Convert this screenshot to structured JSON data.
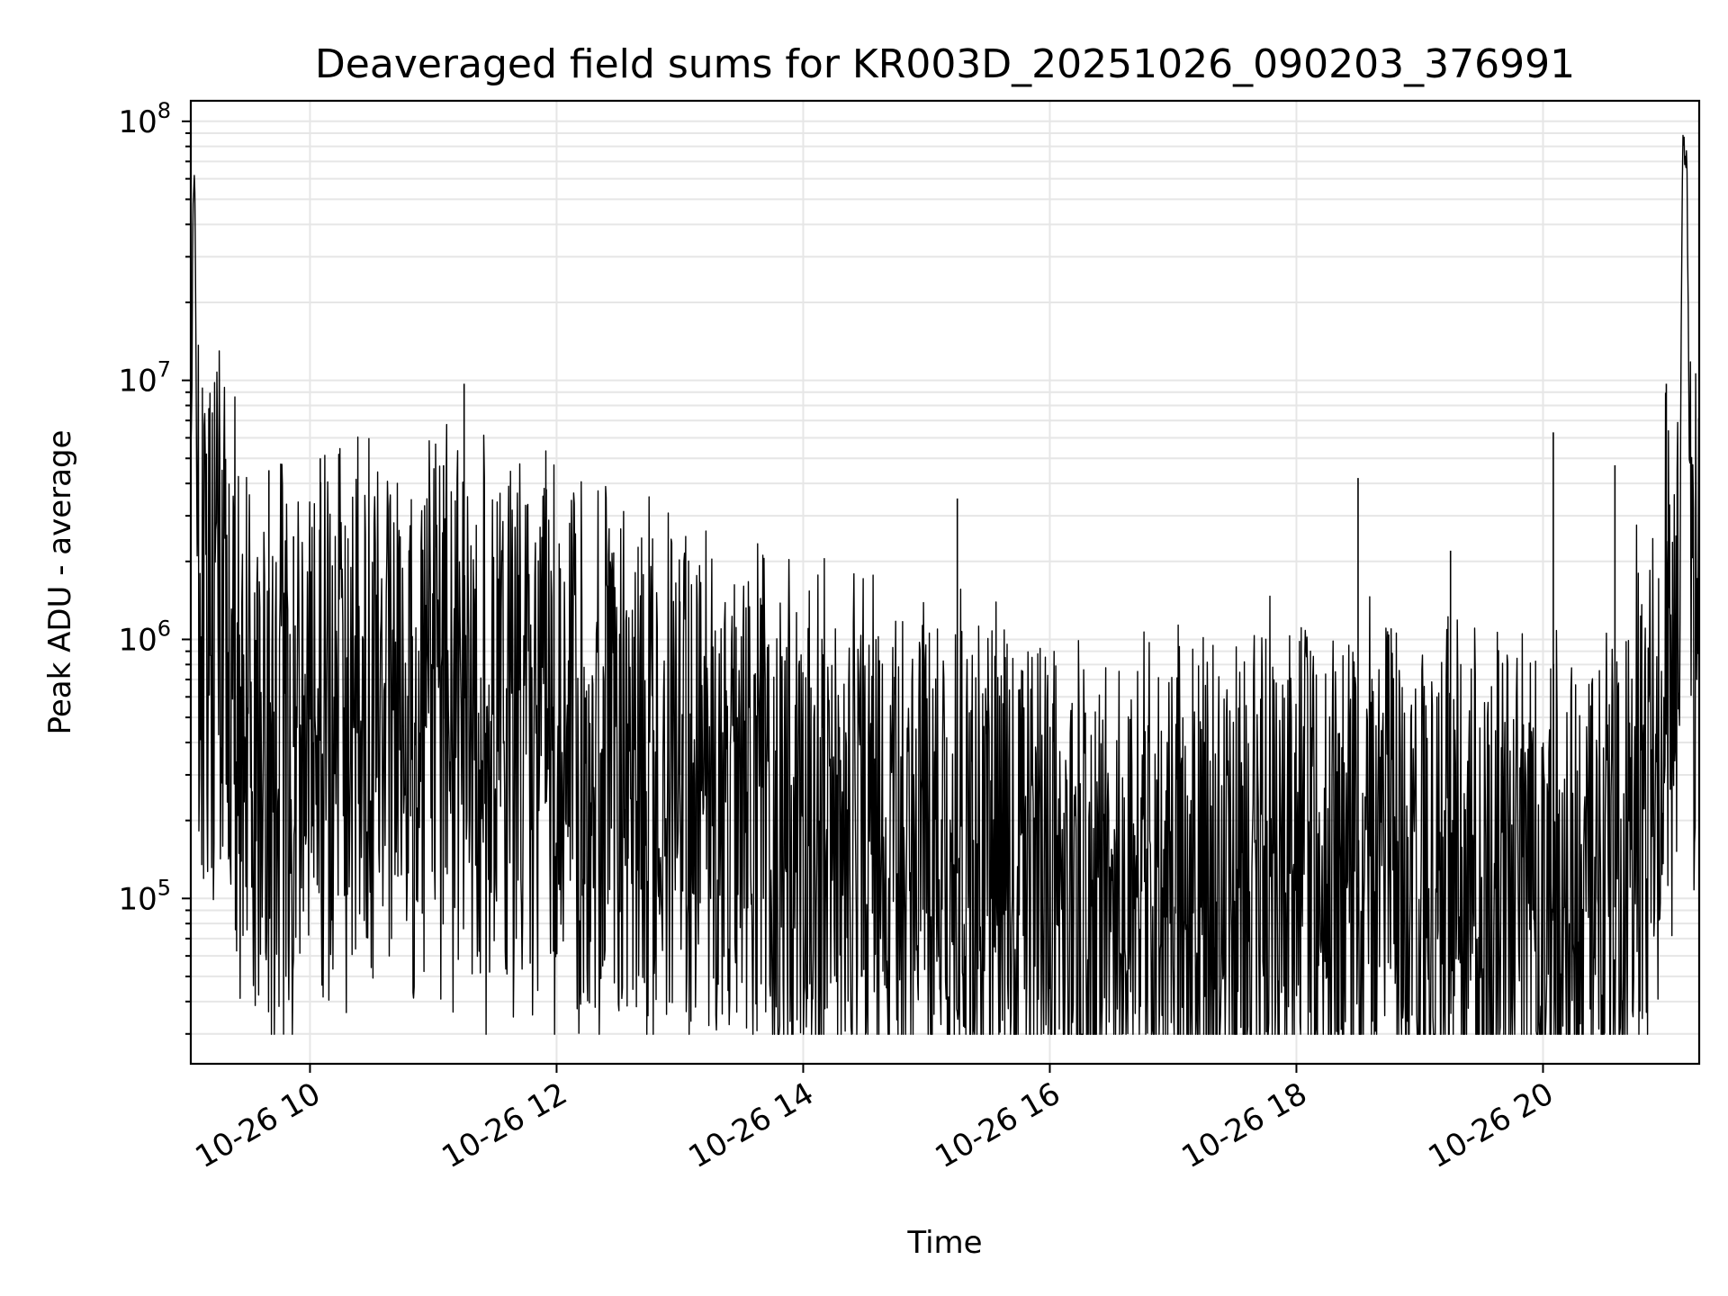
{
  "chart_data": {
    "type": "line",
    "title": "Deaveraged field sums for KR003D_20251026_090203_376991",
    "xlabel": "Time",
    "ylabel": "Peak ADU - average",
    "y_scale": "log",
    "ylim": [
      23000,
      120000000
    ],
    "xlim": [
      "2025-10-26T09:02",
      "2025-10-26T21:16"
    ],
    "x_tick_labels": [
      "10-26 10",
      "10-26 12",
      "10-26 14",
      "10-26 16",
      "10-26 18",
      "10-26 20"
    ],
    "x_tick_times": [
      "2025-10-26T10:00",
      "2025-10-26T12:00",
      "2025-10-26T14:00",
      "2025-10-26T16:00",
      "2025-10-26T18:00",
      "2025-10-26T20:00"
    ],
    "y_tick_exponents": [
      5,
      6,
      7,
      8
    ],
    "grid": true,
    "line_color": "#000000",
    "series": [
      {
        "name": "",
        "x": [
          "2025-10-26T09:02",
          "2025-10-26T09:03",
          "2025-10-26T09:04",
          "2025-10-26T09:05",
          "2025-10-26T09:06",
          "2025-10-26T09:10",
          "2025-10-26T09:15",
          "2025-10-26T09:20",
          "2025-10-26T09:25",
          "2025-10-26T09:30",
          "2025-10-26T09:35",
          "2025-10-26T09:40",
          "2025-10-26T09:45",
          "2025-10-26T09:50",
          "2025-10-26T10:00",
          "2025-10-26T10:15",
          "2025-10-26T10:30",
          "2025-10-26T10:45",
          "2025-10-26T11:00",
          "2025-10-26T11:15",
          "2025-10-26T11:30",
          "2025-10-26T11:45",
          "2025-10-26T12:00",
          "2025-10-26T12:15",
          "2025-10-26T12:30",
          "2025-10-26T12:45",
          "2025-10-26T13:00",
          "2025-10-26T13:15",
          "2025-10-26T13:30",
          "2025-10-26T13:45",
          "2025-10-26T14:00",
          "2025-10-26T14:15",
          "2025-10-26T14:30",
          "2025-10-26T14:45",
          "2025-10-26T15:00",
          "2025-10-26T15:15",
          "2025-10-26T15:30",
          "2025-10-26T15:45",
          "2025-10-26T16:00",
          "2025-10-26T16:15",
          "2025-10-26T16:30",
          "2025-10-26T16:45",
          "2025-10-26T17:00",
          "2025-10-26T17:15",
          "2025-10-26T17:30",
          "2025-10-26T17:45",
          "2025-10-26T18:00",
          "2025-10-26T18:15",
          "2025-10-26T18:30",
          "2025-10-26T18:45",
          "2025-10-26T19:00",
          "2025-10-26T19:15",
          "2025-10-26T19:30",
          "2025-10-26T19:45",
          "2025-10-26T20:00",
          "2025-10-26T20:15",
          "2025-10-26T20:30",
          "2025-10-26T20:40",
          "2025-10-26T20:45",
          "2025-10-26T20:50",
          "2025-10-26T20:55",
          "2025-10-26T21:00",
          "2025-10-26T21:04",
          "2025-10-26T21:06",
          "2025-10-26T21:08",
          "2025-10-26T21:10",
          "2025-10-26T21:12",
          "2025-10-26T21:14",
          "2025-10-26T21:16"
        ],
        "y": [
          1200000,
          50000000,
          60000000,
          3000000,
          1500000,
          1300000,
          1300000,
          1000000,
          500000,
          350000,
          300000,
          320000,
          350000,
          380000,
          400000,
          420000,
          450000,
          470000,
          500000,
          480000,
          420000,
          380000,
          380000,
          350000,
          300000,
          280000,
          300000,
          280000,
          200000,
          160000,
          140000,
          130000,
          125000,
          120000,
          120000,
          125000,
          130000,
          125000,
          90000,
          85000,
          85000,
          85000,
          85000,
          80000,
          100000,
          120000,
          120000,
          110000,
          110000,
          120000,
          80000,
          85000,
          100000,
          95000,
          90000,
          85000,
          90000,
          95000,
          200000,
          300000,
          400000,
          1200000,
          1000000,
          800000,
          80000000,
          75000000,
          900000,
          800000,
          850000
        ]
      }
    ],
    "spikes": {
      "x": [
        "2025-10-26T09:40",
        "2025-10-26T09:52",
        "2025-10-26T10:05",
        "2025-10-26T11:05",
        "2025-10-26T11:15",
        "2025-10-26T11:55",
        "2025-10-26T13:00",
        "2025-10-26T15:15",
        "2025-10-26T18:30",
        "2025-10-26T19:15",
        "2025-10-26T20:05",
        "2025-10-26T20:35",
        "2025-10-26T21:00"
      ],
      "y": [
        4500000,
        2500000,
        5000000,
        4700000,
        9700000,
        3800000,
        1400000,
        3500000,
        4200000,
        2200000,
        6300000,
        4700000,
        9700000
      ]
    }
  }
}
